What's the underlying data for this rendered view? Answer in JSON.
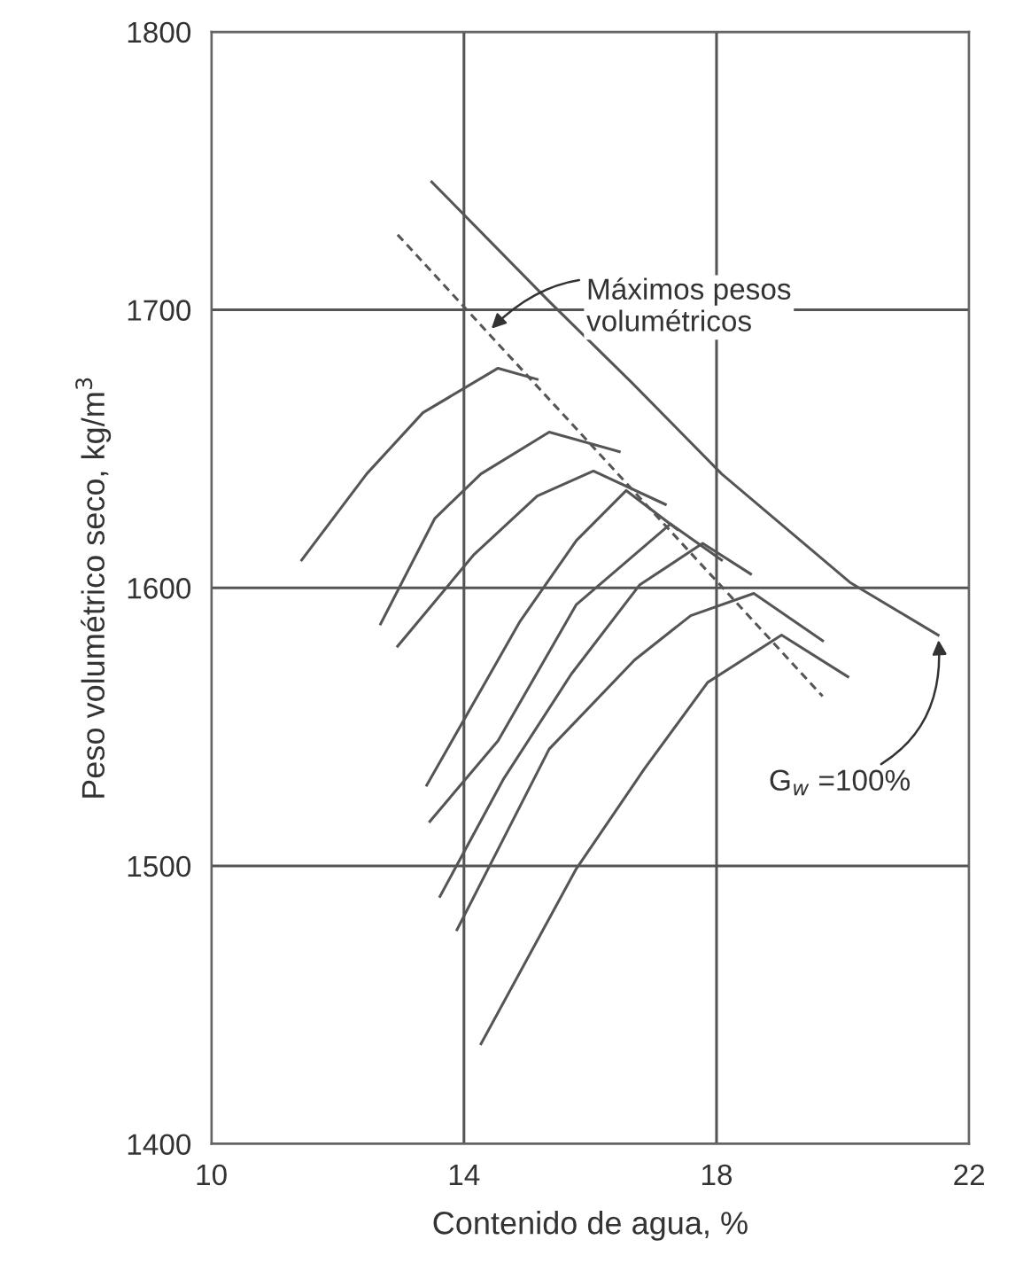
{
  "chart_data": {
    "type": "line",
    "xlabel": "Contenido de agua, %",
    "ylabel": "Peso volumétrico seco, kg/m$^{3}$",
    "xlim": [
      10,
      22
    ],
    "xticks": [
      10,
      14,
      18,
      22
    ],
    "ylim": [
      1400,
      1800
    ],
    "yticks": [
      1400,
      1500,
      1600,
      1700,
      1800
    ],
    "grid": true,
    "marker": "none",
    "series": [
      {
        "color": "#555555",
        "x": [
          11.43,
          12.46,
          13.35,
          14.54,
          15.16
        ],
        "values": [
          1610,
          1641,
          1663,
          1679,
          1675
        ]
      },
      {
        "color": "#555555",
        "x": [
          12.68,
          13.54,
          14.27,
          15.35,
          16.46
        ],
        "values": [
          1587,
          1625,
          1641,
          1656,
          1649
        ]
      },
      {
        "color": "#555555",
        "x": [
          12.95,
          14.16,
          15.16,
          16.05,
          17.19
        ],
        "values": [
          1579,
          1612,
          1633,
          1642,
          1630
        ]
      },
      {
        "color": "#555555",
        "x": [
          13.41,
          14.89,
          15.78,
          16.57,
          17.38
        ],
        "values": [
          1529,
          1588,
          1617,
          1635,
          1621
        ]
      },
      {
        "color": "#555555",
        "x": [
          13.46,
          14.54,
          15.78,
          17.27,
          18.08
        ],
        "values": [
          1516,
          1545,
          1594,
          1623,
          1610
        ]
      },
      {
        "color": "#555555",
        "x": [
          13.62,
          14.62,
          15.7,
          16.78,
          17.78,
          18.54
        ],
        "values": [
          1489,
          1531,
          1569,
          1601,
          1616,
          1605
        ]
      },
      {
        "color": "#555555",
        "x": [
          13.89,
          15.35,
          16.7,
          17.59,
          18.59,
          19.68
        ],
        "values": [
          1477,
          1542,
          1574,
          1590,
          1598,
          1581
        ]
      },
      {
        "color": "#555555",
        "x": [
          14.27,
          15.78,
          16.86,
          17.86,
          19.03,
          20.08
        ],
        "values": [
          1436,
          1499,
          1535,
          1566,
          1583,
          1568
        ]
      },
      {
        "color": "#555555",
        "x": [
          13.49,
          15.35,
          16.65,
          18.08,
          20.11,
          21.51
        ],
        "values": [
          1746,
          1703,
          1674,
          1641,
          1602,
          1583
        ]
      },
      {
        "color": "#555555",
        "line_style": "dashed",
        "x": [
          12.95,
          19.68
        ],
        "values": [
          1727,
          1561
        ]
      }
    ],
    "annotations": [
      {
        "text": "Máximos pesos\nvolumétricos",
        "x": 14.38,
        "y": 1692
      },
      {
        "text": "G$_{w}$ =100%",
        "x": 21.51,
        "y": 1583
      }
    ]
  }
}
